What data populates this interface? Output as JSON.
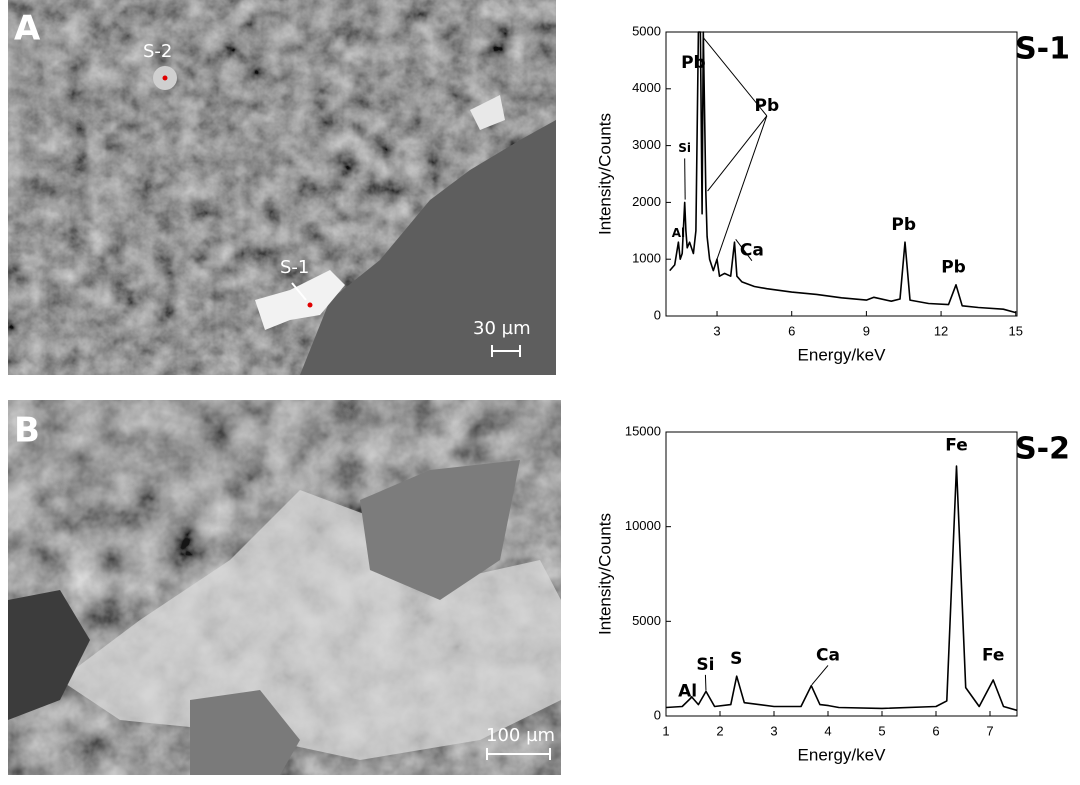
{
  "panels": [
    {
      "label": "A",
      "points": [
        "S-2",
        "S-1"
      ],
      "scale": "30 µm"
    },
    {
      "label": "B",
      "scale": "100 µm"
    }
  ],
  "chart_data": [
    {
      "type": "line",
      "title": "S-1",
      "x_label": "Energy/keV",
      "y_label": "Intensity/Counts",
      "x": [
        1.1,
        1.3,
        1.45,
        1.52,
        1.6,
        1.7,
        1.75,
        1.8,
        1.9,
        2.05,
        2.15,
        2.25,
        2.33,
        2.4,
        2.45,
        2.55,
        2.6,
        2.7,
        2.85,
        3.0,
        3.1,
        3.3,
        3.55,
        3.7,
        3.8,
        4.0,
        4.5,
        5.0,
        6.0,
        7.0,
        8.0,
        9.0,
        9.3,
        10.0,
        10.35,
        10.55,
        10.75,
        11.5,
        12.3,
        12.6,
        12.85,
        13.5,
        14.5,
        15.0
      ],
      "values": [
        800,
        900,
        1300,
        1000,
        1100,
        2000,
        1500,
        1200,
        1300,
        1100,
        1500,
        5000,
        5000,
        1800,
        5000,
        2200,
        1400,
        1000,
        800,
        1000,
        700,
        750,
        700,
        1300,
        700,
        600,
        520,
        480,
        420,
        380,
        320,
        280,
        330,
        260,
        300,
        1300,
        280,
        220,
        200,
        550,
        180,
        150,
        120,
        60
      ],
      "color": "#000000",
      "xlim": [
        0.95,
        15.05
      ],
      "xticks": [
        3,
        6,
        9,
        12,
        15
      ],
      "ylim": [
        0,
        5000
      ],
      "yticks": [
        0,
        1000,
        2000,
        3000,
        4000,
        5000
      ],
      "annotations": [
        "Pb",
        "Si",
        "Al",
        "Pb",
        "Ca",
        "Pb",
        "Pb"
      ]
    },
    {
      "type": "line",
      "title": "S-2",
      "x_label": "Energy/keV",
      "y_label": "Intensity/Counts",
      "x": [
        1.0,
        1.3,
        1.48,
        1.6,
        1.74,
        1.9,
        2.2,
        2.31,
        2.45,
        3.0,
        3.5,
        3.69,
        3.85,
        4.01,
        4.2,
        5.0,
        6.0,
        6.2,
        6.38,
        6.55,
        6.8,
        7.06,
        7.25,
        7.5
      ],
      "values": [
        450,
        500,
        1000,
        600,
        1300,
        500,
        600,
        2100,
        700,
        500,
        500,
        1600,
        600,
        550,
        450,
        400,
        500,
        800,
        13200,
        1500,
        500,
        1900,
        500,
        300
      ],
      "color": "#000000",
      "xlim": [
        1,
        7.5
      ],
      "xticks": [
        1,
        2,
        3,
        4,
        5,
        6,
        7
      ],
      "ylim": [
        0,
        15000
      ],
      "yticks": [
        0,
        5000,
        10000,
        15000
      ],
      "annotations": [
        "Al",
        "Si",
        "S",
        "Ca",
        "Fe",
        "Fe"
      ]
    }
  ]
}
